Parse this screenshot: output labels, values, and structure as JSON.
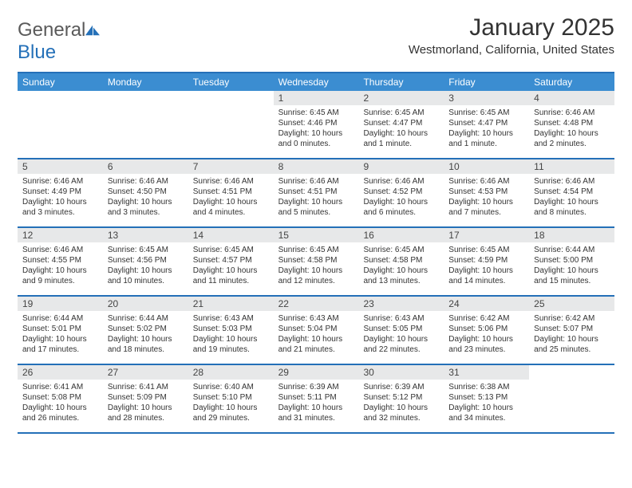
{
  "logo": {
    "general": "General",
    "blue": "Blue"
  },
  "title": "January 2025",
  "subtitle": "Westmorland, California, United States",
  "colors": {
    "header_bg": "#3b8dd1",
    "border": "#2470b8",
    "daynum_bg": "#e7e8e9",
    "text": "#333333",
    "logo_gray": "#5a5a5a",
    "logo_blue": "#2470b8"
  },
  "weekdays": [
    "Sunday",
    "Monday",
    "Tuesday",
    "Wednesday",
    "Thursday",
    "Friday",
    "Saturday"
  ],
  "weeks": [
    [
      {
        "num": "",
        "sunrise": "",
        "sunset": "",
        "daylight1": "",
        "daylight2": ""
      },
      {
        "num": "",
        "sunrise": "",
        "sunset": "",
        "daylight1": "",
        "daylight2": ""
      },
      {
        "num": "",
        "sunrise": "",
        "sunset": "",
        "daylight1": "",
        "daylight2": ""
      },
      {
        "num": "1",
        "sunrise": "Sunrise: 6:45 AM",
        "sunset": "Sunset: 4:46 PM",
        "daylight1": "Daylight: 10 hours",
        "daylight2": "and 0 minutes."
      },
      {
        "num": "2",
        "sunrise": "Sunrise: 6:45 AM",
        "sunset": "Sunset: 4:47 PM",
        "daylight1": "Daylight: 10 hours",
        "daylight2": "and 1 minute."
      },
      {
        "num": "3",
        "sunrise": "Sunrise: 6:45 AM",
        "sunset": "Sunset: 4:47 PM",
        "daylight1": "Daylight: 10 hours",
        "daylight2": "and 1 minute."
      },
      {
        "num": "4",
        "sunrise": "Sunrise: 6:46 AM",
        "sunset": "Sunset: 4:48 PM",
        "daylight1": "Daylight: 10 hours",
        "daylight2": "and 2 minutes."
      }
    ],
    [
      {
        "num": "5",
        "sunrise": "Sunrise: 6:46 AM",
        "sunset": "Sunset: 4:49 PM",
        "daylight1": "Daylight: 10 hours",
        "daylight2": "and 3 minutes."
      },
      {
        "num": "6",
        "sunrise": "Sunrise: 6:46 AM",
        "sunset": "Sunset: 4:50 PM",
        "daylight1": "Daylight: 10 hours",
        "daylight2": "and 3 minutes."
      },
      {
        "num": "7",
        "sunrise": "Sunrise: 6:46 AM",
        "sunset": "Sunset: 4:51 PM",
        "daylight1": "Daylight: 10 hours",
        "daylight2": "and 4 minutes."
      },
      {
        "num": "8",
        "sunrise": "Sunrise: 6:46 AM",
        "sunset": "Sunset: 4:51 PM",
        "daylight1": "Daylight: 10 hours",
        "daylight2": "and 5 minutes."
      },
      {
        "num": "9",
        "sunrise": "Sunrise: 6:46 AM",
        "sunset": "Sunset: 4:52 PM",
        "daylight1": "Daylight: 10 hours",
        "daylight2": "and 6 minutes."
      },
      {
        "num": "10",
        "sunrise": "Sunrise: 6:46 AM",
        "sunset": "Sunset: 4:53 PM",
        "daylight1": "Daylight: 10 hours",
        "daylight2": "and 7 minutes."
      },
      {
        "num": "11",
        "sunrise": "Sunrise: 6:46 AM",
        "sunset": "Sunset: 4:54 PM",
        "daylight1": "Daylight: 10 hours",
        "daylight2": "and 8 minutes."
      }
    ],
    [
      {
        "num": "12",
        "sunrise": "Sunrise: 6:46 AM",
        "sunset": "Sunset: 4:55 PM",
        "daylight1": "Daylight: 10 hours",
        "daylight2": "and 9 minutes."
      },
      {
        "num": "13",
        "sunrise": "Sunrise: 6:45 AM",
        "sunset": "Sunset: 4:56 PM",
        "daylight1": "Daylight: 10 hours",
        "daylight2": "and 10 minutes."
      },
      {
        "num": "14",
        "sunrise": "Sunrise: 6:45 AM",
        "sunset": "Sunset: 4:57 PM",
        "daylight1": "Daylight: 10 hours",
        "daylight2": "and 11 minutes."
      },
      {
        "num": "15",
        "sunrise": "Sunrise: 6:45 AM",
        "sunset": "Sunset: 4:58 PM",
        "daylight1": "Daylight: 10 hours",
        "daylight2": "and 12 minutes."
      },
      {
        "num": "16",
        "sunrise": "Sunrise: 6:45 AM",
        "sunset": "Sunset: 4:58 PM",
        "daylight1": "Daylight: 10 hours",
        "daylight2": "and 13 minutes."
      },
      {
        "num": "17",
        "sunrise": "Sunrise: 6:45 AM",
        "sunset": "Sunset: 4:59 PM",
        "daylight1": "Daylight: 10 hours",
        "daylight2": "and 14 minutes."
      },
      {
        "num": "18",
        "sunrise": "Sunrise: 6:44 AM",
        "sunset": "Sunset: 5:00 PM",
        "daylight1": "Daylight: 10 hours",
        "daylight2": "and 15 minutes."
      }
    ],
    [
      {
        "num": "19",
        "sunrise": "Sunrise: 6:44 AM",
        "sunset": "Sunset: 5:01 PM",
        "daylight1": "Daylight: 10 hours",
        "daylight2": "and 17 minutes."
      },
      {
        "num": "20",
        "sunrise": "Sunrise: 6:44 AM",
        "sunset": "Sunset: 5:02 PM",
        "daylight1": "Daylight: 10 hours",
        "daylight2": "and 18 minutes."
      },
      {
        "num": "21",
        "sunrise": "Sunrise: 6:43 AM",
        "sunset": "Sunset: 5:03 PM",
        "daylight1": "Daylight: 10 hours",
        "daylight2": "and 19 minutes."
      },
      {
        "num": "22",
        "sunrise": "Sunrise: 6:43 AM",
        "sunset": "Sunset: 5:04 PM",
        "daylight1": "Daylight: 10 hours",
        "daylight2": "and 21 minutes."
      },
      {
        "num": "23",
        "sunrise": "Sunrise: 6:43 AM",
        "sunset": "Sunset: 5:05 PM",
        "daylight1": "Daylight: 10 hours",
        "daylight2": "and 22 minutes."
      },
      {
        "num": "24",
        "sunrise": "Sunrise: 6:42 AM",
        "sunset": "Sunset: 5:06 PM",
        "daylight1": "Daylight: 10 hours",
        "daylight2": "and 23 minutes."
      },
      {
        "num": "25",
        "sunrise": "Sunrise: 6:42 AM",
        "sunset": "Sunset: 5:07 PM",
        "daylight1": "Daylight: 10 hours",
        "daylight2": "and 25 minutes."
      }
    ],
    [
      {
        "num": "26",
        "sunrise": "Sunrise: 6:41 AM",
        "sunset": "Sunset: 5:08 PM",
        "daylight1": "Daylight: 10 hours",
        "daylight2": "and 26 minutes."
      },
      {
        "num": "27",
        "sunrise": "Sunrise: 6:41 AM",
        "sunset": "Sunset: 5:09 PM",
        "daylight1": "Daylight: 10 hours",
        "daylight2": "and 28 minutes."
      },
      {
        "num": "28",
        "sunrise": "Sunrise: 6:40 AM",
        "sunset": "Sunset: 5:10 PM",
        "daylight1": "Daylight: 10 hours",
        "daylight2": "and 29 minutes."
      },
      {
        "num": "29",
        "sunrise": "Sunrise: 6:39 AM",
        "sunset": "Sunset: 5:11 PM",
        "daylight1": "Daylight: 10 hours",
        "daylight2": "and 31 minutes."
      },
      {
        "num": "30",
        "sunrise": "Sunrise: 6:39 AM",
        "sunset": "Sunset: 5:12 PM",
        "daylight1": "Daylight: 10 hours",
        "daylight2": "and 32 minutes."
      },
      {
        "num": "31",
        "sunrise": "Sunrise: 6:38 AM",
        "sunset": "Sunset: 5:13 PM",
        "daylight1": "Daylight: 10 hours",
        "daylight2": "and 34 minutes."
      },
      {
        "num": "",
        "sunrise": "",
        "sunset": "",
        "daylight1": "",
        "daylight2": ""
      }
    ]
  ]
}
